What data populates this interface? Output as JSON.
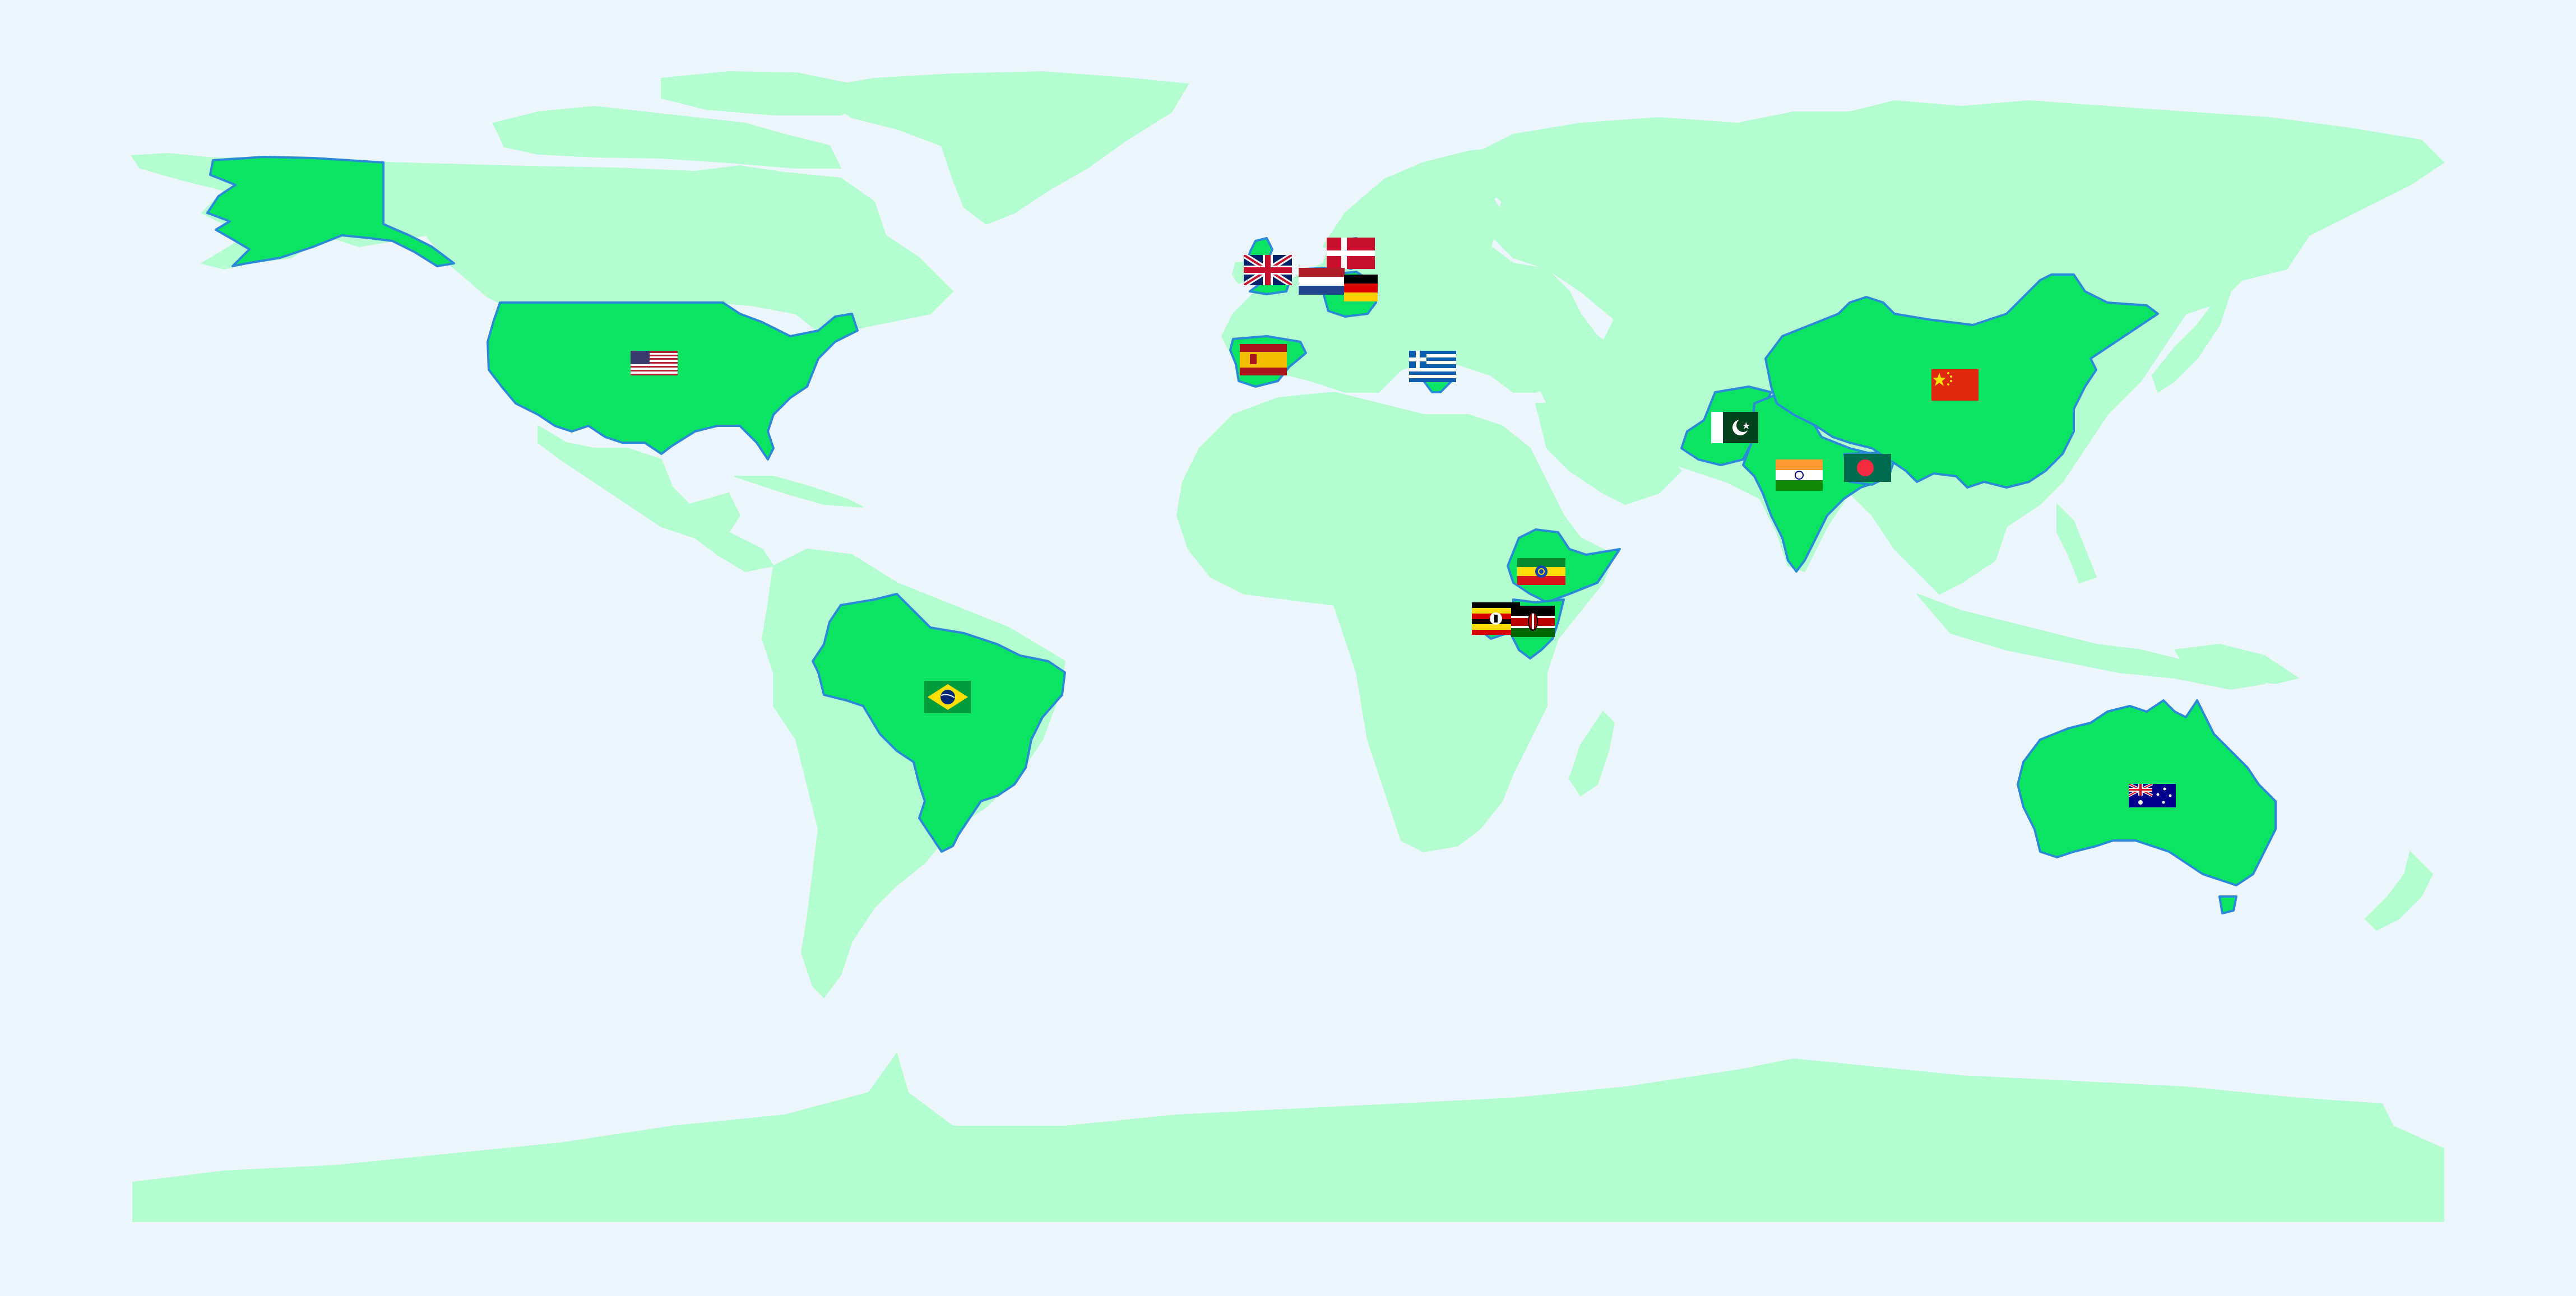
{
  "map": {
    "projection": "equirectangular",
    "colors": {
      "background": "#eef6fd",
      "land": "#b3fdd0",
      "highlight_fill": "#0be462",
      "highlight_border": "#2a8ad7"
    },
    "highlighted_countries": [
      {
        "id": "usa",
        "flag": "flag-usa-icon"
      },
      {
        "id": "brazil",
        "flag": "flag-brazil-icon"
      },
      {
        "id": "united-kingdom",
        "flag": "flag-united-kingdom-icon"
      },
      {
        "id": "denmark",
        "flag": "flag-denmark-icon"
      },
      {
        "id": "netherlands",
        "flag": "flag-netherlands-icon"
      },
      {
        "id": "germany",
        "flag": "flag-germany-icon"
      },
      {
        "id": "spain",
        "flag": "flag-spain-icon"
      },
      {
        "id": "greece",
        "flag": "flag-greece-icon"
      },
      {
        "id": "pakistan",
        "flag": "flag-pakistan-icon"
      },
      {
        "id": "india",
        "flag": "flag-india-icon"
      },
      {
        "id": "bangladesh",
        "flag": "flag-bangladesh-icon"
      },
      {
        "id": "china",
        "flag": "flag-china-icon"
      },
      {
        "id": "ethiopia",
        "flag": "flag-ethiopia-icon"
      },
      {
        "id": "uganda",
        "flag": "flag-uganda-icon"
      },
      {
        "id": "kenya",
        "flag": "flag-kenya-icon"
      },
      {
        "id": "australia",
        "flag": "flag-australia-icon"
      }
    ]
  }
}
